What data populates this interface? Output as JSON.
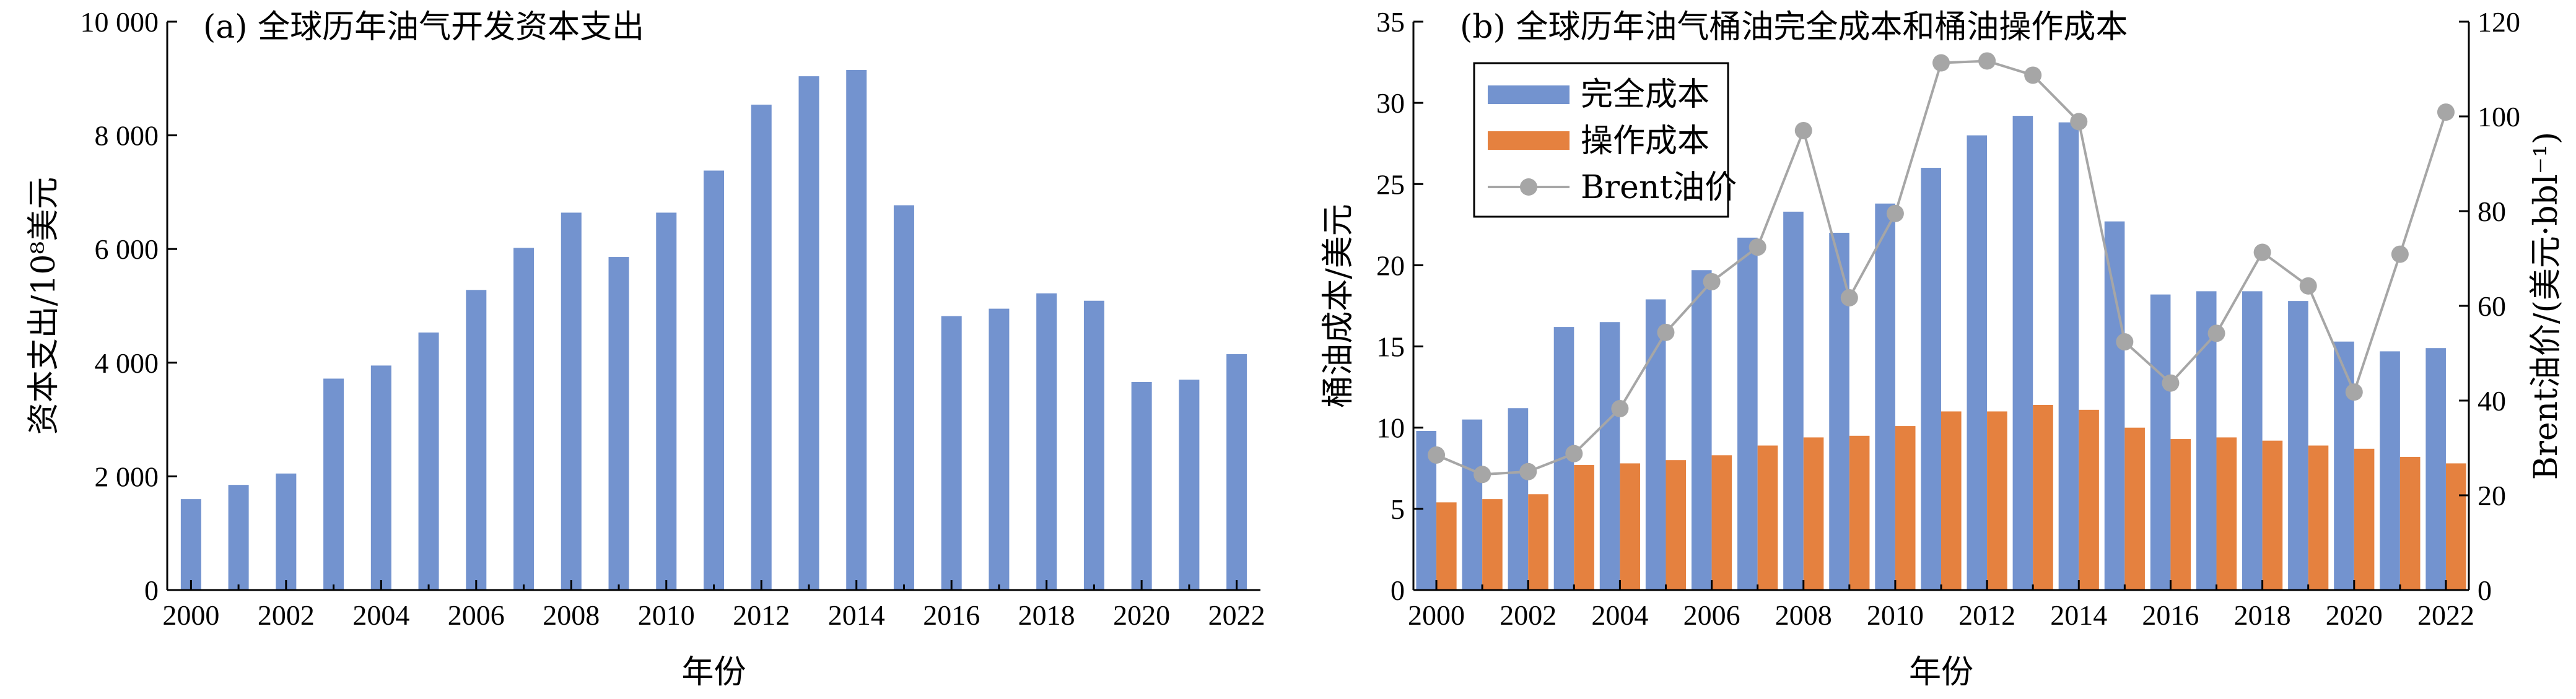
{
  "chart_data": [
    {
      "type": "bar",
      "title": "(a) 全球历年油气开发资本支出",
      "xlabel": "年份",
      "ylabel": "资本支出/10⁸美元",
      "ylim": [
        0,
        10000
      ],
      "yticks": [
        0,
        2000,
        4000,
        6000,
        8000,
        10000
      ],
      "ytick_labels": [
        "0",
        "2 000",
        "4 000",
        "6 000",
        "8 000",
        "10 000"
      ],
      "x": [
        2000,
        2001,
        2002,
        2003,
        2004,
        2005,
        2006,
        2007,
        2008,
        2009,
        2010,
        2011,
        2012,
        2013,
        2014,
        2015,
        2016,
        2017,
        2018,
        2019,
        2020,
        2021,
        2022
      ],
      "xtick_labels": [
        "2000",
        "2002",
        "2004",
        "2006",
        "2008",
        "2010",
        "2012",
        "2014",
        "2016",
        "2018",
        "2020",
        "2022"
      ],
      "values": [
        1600,
        1850,
        2050,
        3720,
        3950,
        4530,
        5280,
        6020,
        6640,
        5860,
        6640,
        7380,
        8540,
        9040,
        9150,
        6770,
        4820,
        4950,
        5220,
        5090,
        3660,
        3700,
        4150
      ],
      "bar_color": "#7393CF",
      "grid": false
    },
    {
      "type": "bar",
      "title": "(b) 全球历年油气桶油完全成本和桶油操作成本",
      "xlabel": "年份",
      "ylabel": "桶油成本/美元",
      "ylabel_right": "Brent油价/(美元·bbl⁻¹)",
      "ylim": [
        0,
        35
      ],
      "yticks": [
        0,
        5,
        10,
        15,
        20,
        25,
        30,
        35
      ],
      "ylim_right": [
        0,
        120
      ],
      "yticks_right": [
        0,
        20,
        40,
        60,
        80,
        100,
        120
      ],
      "x": [
        2000,
        2001,
        2002,
        2003,
        2004,
        2005,
        2006,
        2007,
        2008,
        2009,
        2010,
        2011,
        2012,
        2013,
        2014,
        2015,
        2016,
        2017,
        2018,
        2019,
        2020,
        2021,
        2022
      ],
      "xtick_labels": [
        "2000",
        "2002",
        "2004",
        "2006",
        "2008",
        "2010",
        "2012",
        "2014",
        "2016",
        "2018",
        "2020",
        "2022"
      ],
      "legend_placement": "top-left",
      "grid": false,
      "series": [
        {
          "name": "完全成本",
          "kind": "bar",
          "axis": "left",
          "color": "#7393CF",
          "values": [
            9.8,
            10.5,
            11.2,
            16.2,
            16.5,
            17.9,
            19.7,
            21.7,
            23.3,
            22.0,
            23.8,
            26.0,
            28.0,
            29.2,
            28.8,
            22.7,
            18.2,
            18.4,
            18.4,
            17.8,
            15.3,
            14.7,
            14.9
          ]
        },
        {
          "name": "操作成本",
          "kind": "bar",
          "axis": "left",
          "color": "#E5813F",
          "values": [
            5.4,
            5.6,
            5.9,
            7.7,
            7.8,
            8.0,
            8.3,
            8.9,
            9.4,
            9.5,
            10.1,
            11.0,
            11.0,
            11.4,
            11.1,
            10.0,
            9.3,
            9.4,
            9.2,
            8.9,
            8.7,
            8.2,
            7.8
          ]
        },
        {
          "name": "Brent油价",
          "kind": "line",
          "axis": "right",
          "color": "#A6A6A6",
          "values": [
            28.5,
            24.4,
            25.0,
            28.8,
            38.3,
            54.4,
            65.1,
            72.4,
            97.0,
            61.7,
            79.5,
            111.3,
            111.7,
            108.7,
            98.9,
            52.4,
            43.7,
            54.2,
            71.3,
            64.2,
            41.8,
            70.9,
            100.9
          ]
        }
      ]
    }
  ]
}
